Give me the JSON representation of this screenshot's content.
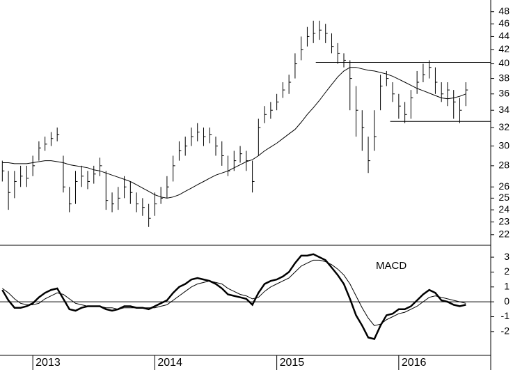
{
  "chart_data": {
    "type": "ohlc",
    "log_scale": true,
    "x": [
      2012.75,
      2012.8,
      2012.85,
      2012.9,
      2012.95,
      2013,
      2013.05,
      2013.1,
      2013.15,
      2013.2,
      2013.25,
      2013.3,
      2013.35,
      2013.4,
      2013.45,
      2013.5,
      2013.55,
      2013.6,
      2013.65,
      2013.7,
      2013.75,
      2013.8,
      2013.85,
      2013.9,
      2013.95,
      2014,
      2014.05,
      2014.1,
      2014.15,
      2014.2,
      2014.25,
      2014.3,
      2014.35,
      2014.4,
      2014.45,
      2014.5,
      2014.55,
      2014.6,
      2014.65,
      2014.7,
      2014.75,
      2014.8,
      2014.85,
      2014.9,
      2014.95,
      2015,
      2015.05,
      2015.1,
      2015.15,
      2015.2,
      2015.25,
      2015.3,
      2015.35,
      2015.4,
      2015.45,
      2015.5,
      2015.55,
      2015.6,
      2015.65,
      2015.7,
      2015.75,
      2015.8,
      2015.85,
      2015.9,
      2015.95,
      2016,
      2016.05,
      2016.1,
      2016.15,
      2016.2,
      2016.25,
      2016.3,
      2016.35,
      2016.4,
      2016.45,
      2016.5,
      2016.55
    ],
    "high": [
      28.5,
      27.5,
      27.5,
      28,
      28,
      29,
      30.5,
      31,
      31.5,
      32,
      29,
      26,
      27.5,
      28,
      27.5,
      28,
      28.8,
      27.5,
      25.5,
      26,
      27,
      26.5,
      25.5,
      25,
      24.5,
      25.5,
      26,
      27,
      29,
      30.5,
      31,
      32,
      32.5,
      32,
      32,
      31,
      30.5,
      29,
      29.5,
      30,
      29.5,
      28.5,
      33,
      34.5,
      35,
      36,
      37.5,
      38.5,
      41.5,
      44,
      45.5,
      46.5,
      46.5,
      46,
      44.5,
      43,
      41.5,
      40.5,
      37,
      34,
      31,
      34,
      38.5,
      39,
      37.5,
      36,
      35,
      36.5,
      39,
      40,
      40.5,
      39.5,
      37.5,
      37.5,
      36.5,
      35.5,
      37.5
    ],
    "low": [
      26.5,
      24,
      25,
      26,
      26,
      27,
      28.5,
      29.5,
      30,
      30.5,
      25.5,
      23.8,
      24.5,
      26,
      25.8,
      26.3,
      27,
      24,
      23.8,
      24,
      25,
      24.5,
      23.8,
      23.5,
      22.6,
      23.5,
      24.5,
      25,
      26.5,
      28.5,
      29,
      30,
      30.5,
      30,
      30.3,
      29,
      28,
      27,
      27.5,
      28.3,
      27.5,
      25.5,
      29,
      32.5,
      33,
      34,
      35.5,
      36,
      38,
      40.5,
      42.5,
      43,
      43.5,
      43,
      41.5,
      40,
      39.5,
      34,
      31,
      29.5,
      27.3,
      29.5,
      34,
      37,
      35,
      33,
      32.5,
      33,
      36,
      37.5,
      38,
      36,
      35,
      34.5,
      33,
      32.5,
      34.5
    ],
    "close": [
      27.5,
      25.5,
      26.5,
      27,
      26.8,
      28,
      29.8,
      30.2,
      30.8,
      31.2,
      26,
      24.5,
      26.5,
      27,
      26.5,
      27.2,
      28,
      24.8,
      24.5,
      25,
      26,
      25.5,
      24.5,
      24.2,
      23.3,
      24.5,
      25,
      26,
      28,
      29.5,
      30,
      31,
      31.5,
      31,
      31.2,
      30,
      29,
      27.5,
      28.5,
      29.2,
      28.5,
      26.5,
      32,
      33.5,
      34,
      35,
      36.5,
      37.5,
      40,
      42,
      44,
      44.5,
      45,
      44.5,
      42.5,
      41.5,
      40.5,
      38,
      34,
      32,
      28.5,
      31,
      37,
      38,
      36,
      34.5,
      33.5,
      35.5,
      37.5,
      38.5,
      39.5,
      37.5,
      36,
      36.5,
      35,
      34,
      36.5
    ],
    "moving_average": [
      28.3,
      28.3,
      28.2,
      28.2,
      28.2,
      28.3,
      28.4,
      28.5,
      28.5,
      28.4,
      28.3,
      28.1,
      28.0,
      27.9,
      27.8,
      27.6,
      27.5,
      27.3,
      27.1,
      26.9,
      26.7,
      26.5,
      26.2,
      25.9,
      25.6,
      25.3,
      25.1,
      25.0,
      25.1,
      25.3,
      25.6,
      25.9,
      26.2,
      26.5,
      26.8,
      27.1,
      27.3,
      27.5,
      27.8,
      28.1,
      28.4,
      28.6,
      29.0,
      29.5,
      29.9,
      30.3,
      30.8,
      31.3,
      31.8,
      32.6,
      33.5,
      34.3,
      35.2,
      36.2,
      37.2,
      38.2,
      39.0,
      39.5,
      39.5,
      39.3,
      39.1,
      39.0,
      38.8,
      38.6,
      38.3,
      37.9,
      37.5,
      37.1,
      36.7,
      36.4,
      36.1,
      35.8,
      35.5,
      35.4,
      35.5,
      35.7,
      36.0
    ],
    "levels": [
      {
        "value": 40.2,
        "from": 2015.32
      },
      {
        "value": 32.7,
        "from": 2015.93
      }
    ],
    "ylim": [
      21.2,
      50
    ],
    "yticks": [
      22,
      23,
      24,
      25,
      26,
      28,
      30,
      32,
      34,
      36,
      38,
      40,
      42,
      44,
      46,
      48
    ],
    "xlim": [
      2012.731,
      2016.754
    ],
    "xticks": [
      {
        "value": 2013,
        "label": "2013"
      },
      {
        "value": 2014,
        "label": "2014"
      },
      {
        "value": 2015,
        "label": "2015"
      },
      {
        "value": 2016,
        "label": "2016"
      }
    ],
    "indicator": {
      "type": "line",
      "title": "MACD",
      "macd": [
        0.8,
        0.1,
        -0.4,
        -0.4,
        -0.3,
        -0.1,
        0.3,
        0.6,
        0.8,
        0.9,
        0.2,
        -0.5,
        -0.6,
        -0.4,
        -0.3,
        -0.3,
        -0.3,
        -0.5,
        -0.6,
        -0.5,
        -0.3,
        -0.3,
        -0.4,
        -0.4,
        -0.5,
        -0.3,
        -0.1,
        0.1,
        0.6,
        1.0,
        1.2,
        1.5,
        1.6,
        1.5,
        1.4,
        1.2,
        0.9,
        0.5,
        0.4,
        0.3,
        0.2,
        -0.2,
        0.6,
        1.2,
        1.4,
        1.5,
        1.7,
        2.0,
        2.6,
        3.1,
        3.1,
        3.2,
        3.0,
        2.8,
        2.3,
        1.8,
        1.2,
        0.2,
        -0.9,
        -1.6,
        -2.4,
        -2.5,
        -1.6,
        -0.9,
        -0.8,
        -0.5,
        -0.5,
        -0.3,
        0.1,
        0.5,
        0.8,
        0.6,
        0.1,
        0,
        -0.2,
        -0.3,
        -0.2
      ],
      "signal": [
        0.9,
        0.6,
        0.2,
        -0.1,
        -0.2,
        -0.2,
        -0.1,
        0.2,
        0.4,
        0.6,
        0.5,
        0.2,
        -0.1,
        -0.2,
        -0.3,
        -0.3,
        -0.3,
        -0.4,
        -0.4,
        -0.5,
        -0.4,
        -0.4,
        -0.4,
        -0.4,
        -0.4,
        -0.4,
        -0.3,
        -0.2,
        0.1,
        0.4,
        0.7,
        1.0,
        1.2,
        1.3,
        1.4,
        1.3,
        1.2,
        0.9,
        0.7,
        0.5,
        0.4,
        0.2,
        0.3,
        0.7,
        1.0,
        1.2,
        1.4,
        1.6,
        2.0,
        2.4,
        2.6,
        2.8,
        2.8,
        2.7,
        2.5,
        2.2,
        1.8,
        1.2,
        0.4,
        -0.4,
        -1.1,
        -1.6,
        -1.5,
        -1.2,
        -1.0,
        -0.8,
        -0.7,
        -0.5,
        -0.3,
        0,
        0.3,
        0.4,
        0.3,
        0.2,
        0.1,
        0,
        -0.1
      ],
      "ylim": [
        -3.6,
        3.8
      ],
      "yticks": [
        -2,
        -1,
        0,
        1,
        2,
        3
      ],
      "zero_line": true
    }
  }
}
